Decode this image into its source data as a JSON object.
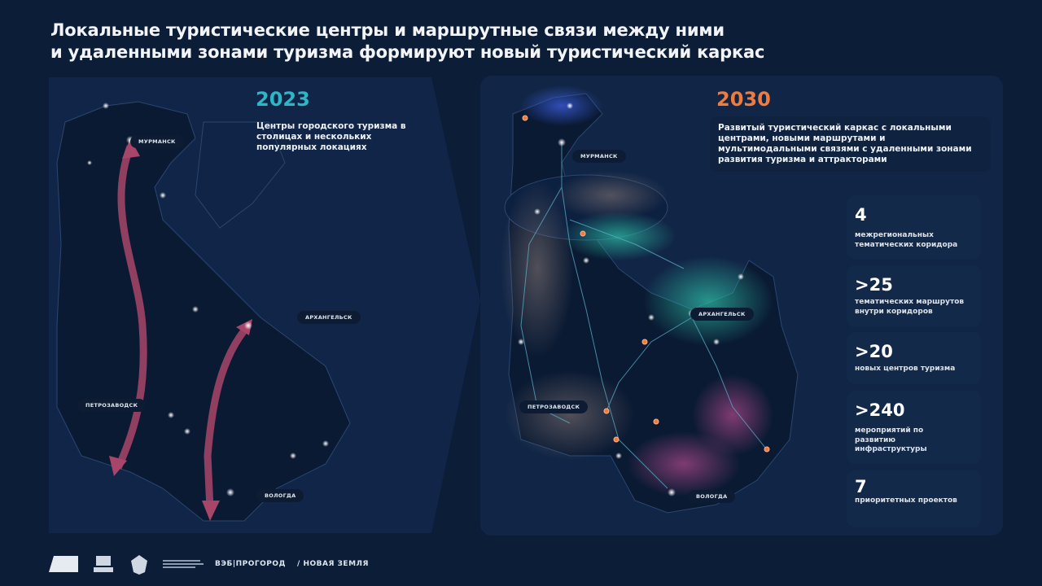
{
  "title": {
    "line1": "Локальные туристические центры и маршрутные связи между ними",
    "line2": "и удаленными зонами туризма формируют новый туристический каркас"
  },
  "left_map": {
    "year": "2023",
    "description": "Центры городского туризма в столицах и нескольких популярных локациях",
    "cities": [
      "МУРМАНСК",
      "АРХАНГЕЛЬСК",
      "ПЕТРОЗАВОДСК",
      "ВОЛОГДА"
    ]
  },
  "right_map": {
    "year": "2030",
    "description": "Развитый туристический каркас с локальными центрами, новыми маршрутами и мультимодальными связями с удаленными зонами развития туризма и аттракторами",
    "cities": [
      "МУРМАНСК",
      "АРХАНГЕЛЬСК",
      "ПЕТРОЗАВОДСК",
      "ВОЛОГДА"
    ]
  },
  "stats": [
    {
      "value": "4",
      "label": "межрегиональных тематических коридора"
    },
    {
      "value": ">25",
      "label": "тематических маршрутов внутри коридоров"
    },
    {
      "value": ">20",
      "label": "новых центров туризма"
    },
    {
      "value": ">240",
      "label": "мероприятий по развитию инфраструктуры"
    },
    {
      "value": "7",
      "label": "приоритетных проектов"
    }
  ],
  "footer": {
    "logos": [
      "ВЭБ|ПРОГОРОД",
      "/ НОВАЯ ЗЕМЛЯ"
    ]
  },
  "colors": {
    "background": "#0c1d38",
    "year_2023": "#2db6c6",
    "year_2030": "#f07b3d",
    "route_arrow": "#a8466a",
    "corridor_teal": "#2fc3a8",
    "corridor_pink": "#b04a8c"
  }
}
